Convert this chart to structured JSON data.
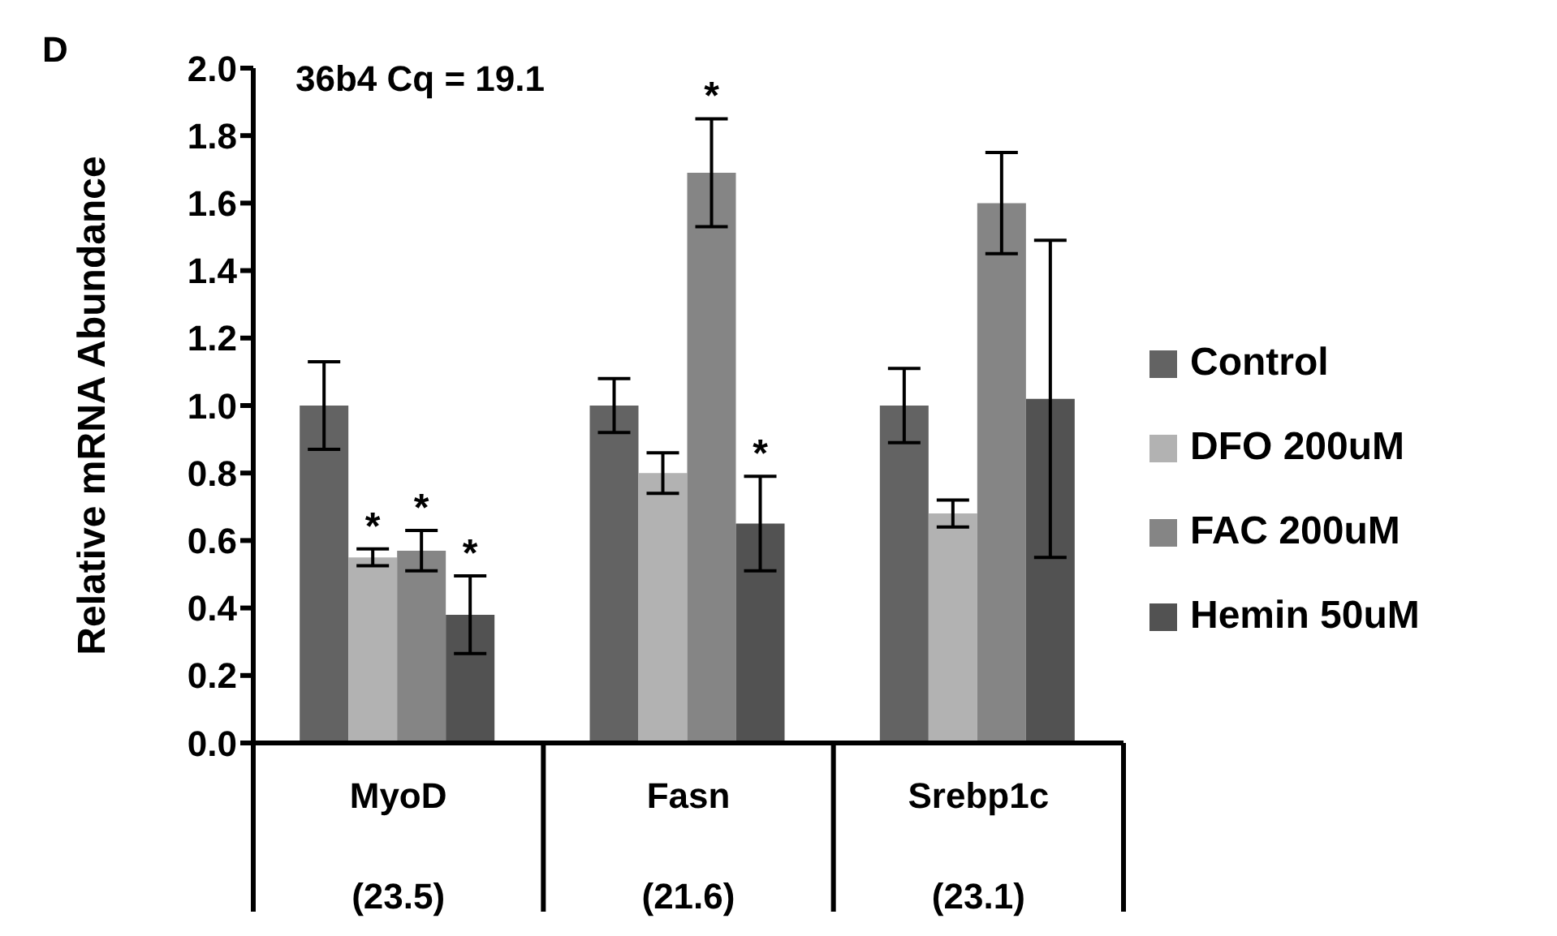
{
  "chart_data": {
    "type": "bar",
    "ylabel": "Relative mRNA Abundance",
    "categories": [
      "MyoD\n(23.5)",
      "Fasn\n(21.6)",
      "Srebp1c\n(23.1)"
    ],
    "series": [
      {
        "name": "Control",
        "color": "#636363",
        "values": [
          1.0,
          1.0,
          1.0
        ],
        "errors": [
          0.13,
          0.08,
          0.11
        ]
      },
      {
        "name": "DFO 200uM",
        "color": "#b2b2b2",
        "values": [
          0.55,
          0.8,
          0.68
        ],
        "errors": [
          0.025,
          0.06,
          0.04
        ],
        "value_labels": [
          "*",
          null,
          null
        ]
      },
      {
        "name": "FAC 200uM",
        "color": "#858585",
        "values": [
          0.57,
          1.69,
          1.6
        ],
        "errors": [
          0.06,
          0.16,
          0.15
        ],
        "value_labels": [
          "*",
          "*",
          null
        ]
      },
      {
        "name": "Hemin 50uM",
        "color": "#525252",
        "values": [
          0.38,
          0.65,
          1.02
        ],
        "errors": [
          0.115,
          0.14,
          0.47
        ],
        "value_labels": [
          "*",
          "*",
          null
        ]
      }
    ],
    "ylim": [
      0,
      2
    ],
    "yticks": [
      {
        "value": 0,
        "label": "0.0"
      },
      {
        "value": 0.2,
        "label": "0.2"
      },
      {
        "value": 0.4,
        "label": "0.4"
      },
      {
        "value": 0.6,
        "label": "0.6"
      },
      {
        "value": 0.8,
        "label": "0.8"
      },
      {
        "value": 1,
        "label": "1.0"
      },
      {
        "value": 1.2,
        "label": "1.2"
      },
      {
        "value": 1.4,
        "label": "1.4"
      },
      {
        "value": 1.6,
        "label": "1.6"
      },
      {
        "value": 1.8,
        "label": "1.8"
      },
      {
        "value": 2,
        "label": "2.0"
      }
    ],
    "grid": false,
    "legend": "right",
    "annotations": [
      "D",
      "36b4 Cq = 19.1"
    ]
  }
}
